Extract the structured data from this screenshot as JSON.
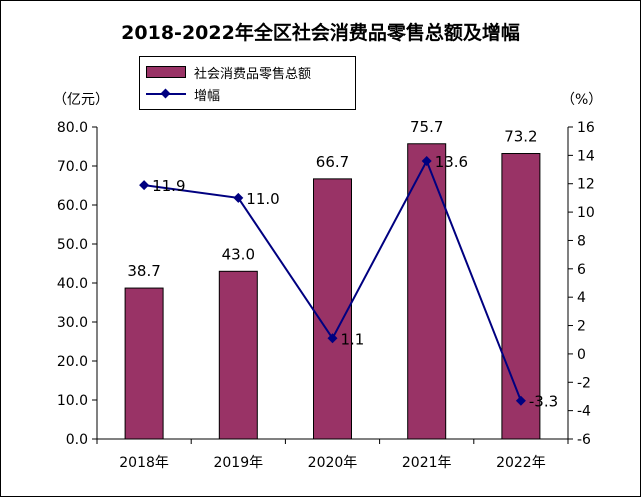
{
  "title": "2018-2022年全区社会消费品零售总额及增幅",
  "units": {
    "left": "（亿元）",
    "right": "（%）"
  },
  "colors": {
    "bar": "#993366",
    "line": "#000080"
  },
  "chart_data": {
    "type": "bar+line",
    "title": "2018-2022年全区社会消费品零售总额及增幅",
    "categories": [
      "2018年",
      "2019年",
      "2020年",
      "2021年",
      "2022年"
    ],
    "series": [
      {
        "name": "社会消费品零售总额",
        "type": "bar",
        "axis": "left",
        "values": [
          38.7,
          43.0,
          66.7,
          75.7,
          73.2
        ],
        "labels": [
          "38.7",
          "43.0",
          "66.7",
          "75.7",
          "73.2"
        ]
      },
      {
        "name": "增幅",
        "type": "line",
        "axis": "right",
        "values": [
          11.9,
          11.0,
          1.1,
          13.6,
          -3.3
        ],
        "labels": [
          "11.9",
          "11.0",
          "1.1",
          "13.6",
          "-3.3"
        ]
      }
    ],
    "y_left": {
      "min": 0,
      "max": 80,
      "step": 10,
      "ticks": [
        "0.0",
        "10.0",
        "20.0",
        "30.0",
        "40.0",
        "50.0",
        "60.0",
        "70.0",
        "80.0"
      ],
      "unit": "（亿元）"
    },
    "y_right": {
      "min": -6,
      "max": 16,
      "step": 2,
      "ticks": [
        "-6",
        "-4",
        "-2",
        "0",
        "2",
        "4",
        "6",
        "8",
        "10",
        "12",
        "14",
        "16"
      ],
      "unit": "（%）"
    },
    "grid": false,
    "legend_position": "top-left"
  }
}
